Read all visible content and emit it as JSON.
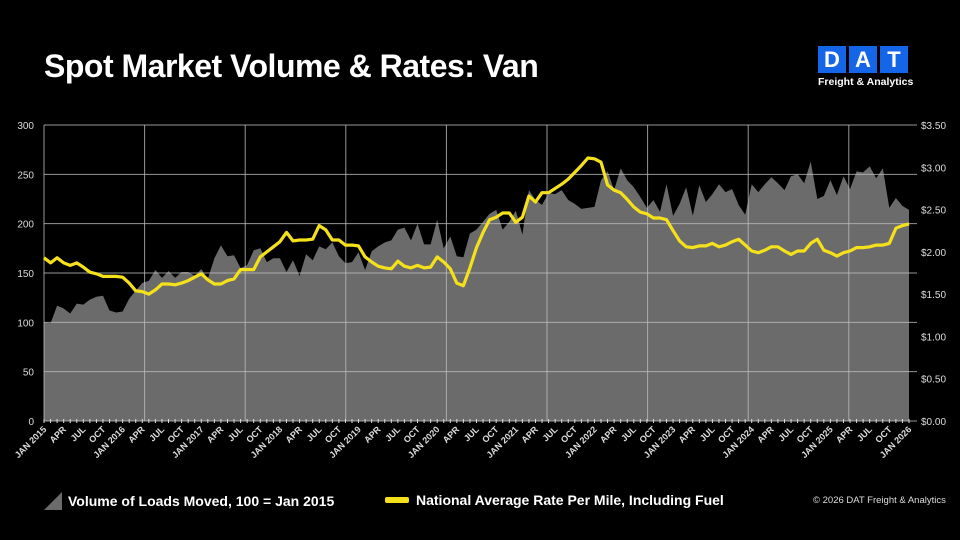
{
  "title": "Spot Market Volume & Rates: Van",
  "logo": {
    "letters": [
      "D",
      "A",
      "T"
    ],
    "subtitle": "Freight & Analytics",
    "color": "#1565e8"
  },
  "copyright": "© 2026 DAT Freight & Analytics",
  "chart_data": {
    "type": "area+line",
    "grid": true,
    "legend_placement": "bottom",
    "left_axis": {
      "range": [
        0,
        300
      ],
      "ticks": [
        "0",
        "50",
        "100",
        "150",
        "200",
        "250",
        "300"
      ]
    },
    "right_axis": {
      "range": [
        0,
        3.5
      ],
      "ticks": [
        "$0.00",
        "$0.50",
        "$1.00",
        "$1.50",
        "$2.00",
        "$2.50",
        "$3.00",
        "$3.50"
      ]
    },
    "x_range": [
      "Jan 2015",
      "Jan 2026"
    ],
    "x_tick_labels": [
      "JAN 2015",
      "APR",
      "JUL",
      "OCT",
      "JAN 2016",
      "APR",
      "JUL",
      "OCT",
      "JAN 2017",
      "APR",
      "JUL",
      "OCT",
      "JAN 2018",
      "APR",
      "JUL",
      "OCT",
      "JAN 2019",
      "APR",
      "JUL",
      "OCT",
      "JAN 2020",
      "APR",
      "JUL",
      "OCT",
      "JAN 2021",
      "APR",
      "JUL",
      "OCT",
      "JAN 2022",
      "APR",
      "JUL",
      "OCT",
      "JAN 2023",
      "APR",
      "JUL",
      "OCT",
      "JAN 2024",
      "APR",
      "JUL",
      "OCT",
      "JAN 2025",
      "APR",
      "JUL",
      "OCT",
      "JAN 2026"
    ],
    "series": [
      {
        "name": "Volume of Loads Moved, 100 = Jan 2015",
        "kind": "area",
        "axis": "left",
        "color": "#6b6b6b",
        "monthly_by_year": {
          "2015": [
            100,
            99,
            117,
            114,
            109,
            119,
            118,
            123,
            126,
            127,
            112,
            110
          ],
          "2016": [
            111,
            124,
            132,
            140,
            142,
            153,
            145,
            152,
            145,
            151,
            151,
            147
          ],
          "2017": [
            154,
            144,
            165,
            178,
            167,
            168,
            155,
            158,
            173,
            175,
            161,
            165
          ],
          "2018": [
            165,
            151,
            163,
            147,
            169,
            163,
            177,
            174,
            181,
            167,
            160,
            161
          ],
          "2019": [
            171,
            153,
            172,
            177,
            181,
            183,
            194,
            196,
            183,
            200,
            179,
            179
          ],
          "2020": [
            204,
            175,
            187,
            167,
            166,
            190,
            194,
            202,
            210,
            214,
            194,
            202
          ],
          "2021": [
            213,
            189,
            234,
            224,
            219,
            231,
            230,
            234,
            224,
            220,
            215,
            216
          ],
          "2022": [
            217,
            244,
            253,
            234,
            256,
            244,
            237,
            227,
            216,
            224,
            212,
            240
          ],
          "2023": [
            208,
            220,
            237,
            208,
            239,
            222,
            230,
            240,
            232,
            235,
            219,
            209
          ],
          "2024": [
            240,
            232,
            240,
            247,
            241,
            234,
            248,
            250,
            241,
            263,
            225,
            228
          ],
          "2025": [
            244,
            229,
            248,
            235,
            253,
            252,
            258,
            246,
            256,
            216,
            226,
            218
          ],
          "2026": [
            214
          ]
        }
      },
      {
        "name": "National Average Rate Per Mile, Including Fuel",
        "kind": "line",
        "axis": "right",
        "color": "#f5e11b",
        "monthly_by_year": {
          "2015": [
            1.93,
            1.87,
            1.93,
            1.87,
            1.84,
            1.87,
            1.82,
            1.76,
            1.74,
            1.71,
            1.71,
            1.71
          ],
          "2016": [
            1.7,
            1.63,
            1.54,
            1.53,
            1.5,
            1.55,
            1.62,
            1.62,
            1.61,
            1.63,
            1.66,
            1.7
          ],
          "2017": [
            1.74,
            1.67,
            1.62,
            1.62,
            1.66,
            1.68,
            1.79,
            1.79,
            1.79,
            1.94,
            2.0,
            2.06
          ],
          "2018": [
            2.12,
            2.23,
            2.13,
            2.14,
            2.14,
            2.15,
            2.31,
            2.26,
            2.14,
            2.14,
            2.08,
            2.08
          ],
          "2019": [
            2.07,
            1.94,
            1.88,
            1.83,
            1.81,
            1.8,
            1.89,
            1.83,
            1.81,
            1.84,
            1.81,
            1.82
          ],
          "2020": [
            1.94,
            1.88,
            1.8,
            1.63,
            1.6,
            1.81,
            2.05,
            2.23,
            2.38,
            2.41,
            2.46,
            2.46
          ],
          "2021": [
            2.35,
            2.41,
            2.66,
            2.59,
            2.7,
            2.7,
            2.75,
            2.8,
            2.86,
            2.94,
            3.02,
            3.11
          ],
          "2022": [
            3.1,
            3.06,
            2.79,
            2.73,
            2.7,
            2.62,
            2.53,
            2.47,
            2.45,
            2.4,
            2.4,
            2.38
          ],
          "2023": [
            2.25,
            2.13,
            2.06,
            2.05,
            2.07,
            2.07,
            2.1,
            2.06,
            2.08,
            2.12,
            2.15,
            2.08
          ],
          "2024": [
            2.01,
            1.99,
            2.02,
            2.06,
            2.06,
            2.01,
            1.97,
            2.01,
            2.01,
            2.1,
            2.15,
            2.02
          ],
          "2025": [
            1.99,
            1.95,
            1.99,
            2.01,
            2.05,
            2.05,
            2.06,
            2.08,
            2.08,
            2.1,
            2.28,
            2.31
          ],
          "2026": [
            2.33
          ]
        }
      }
    ]
  }
}
